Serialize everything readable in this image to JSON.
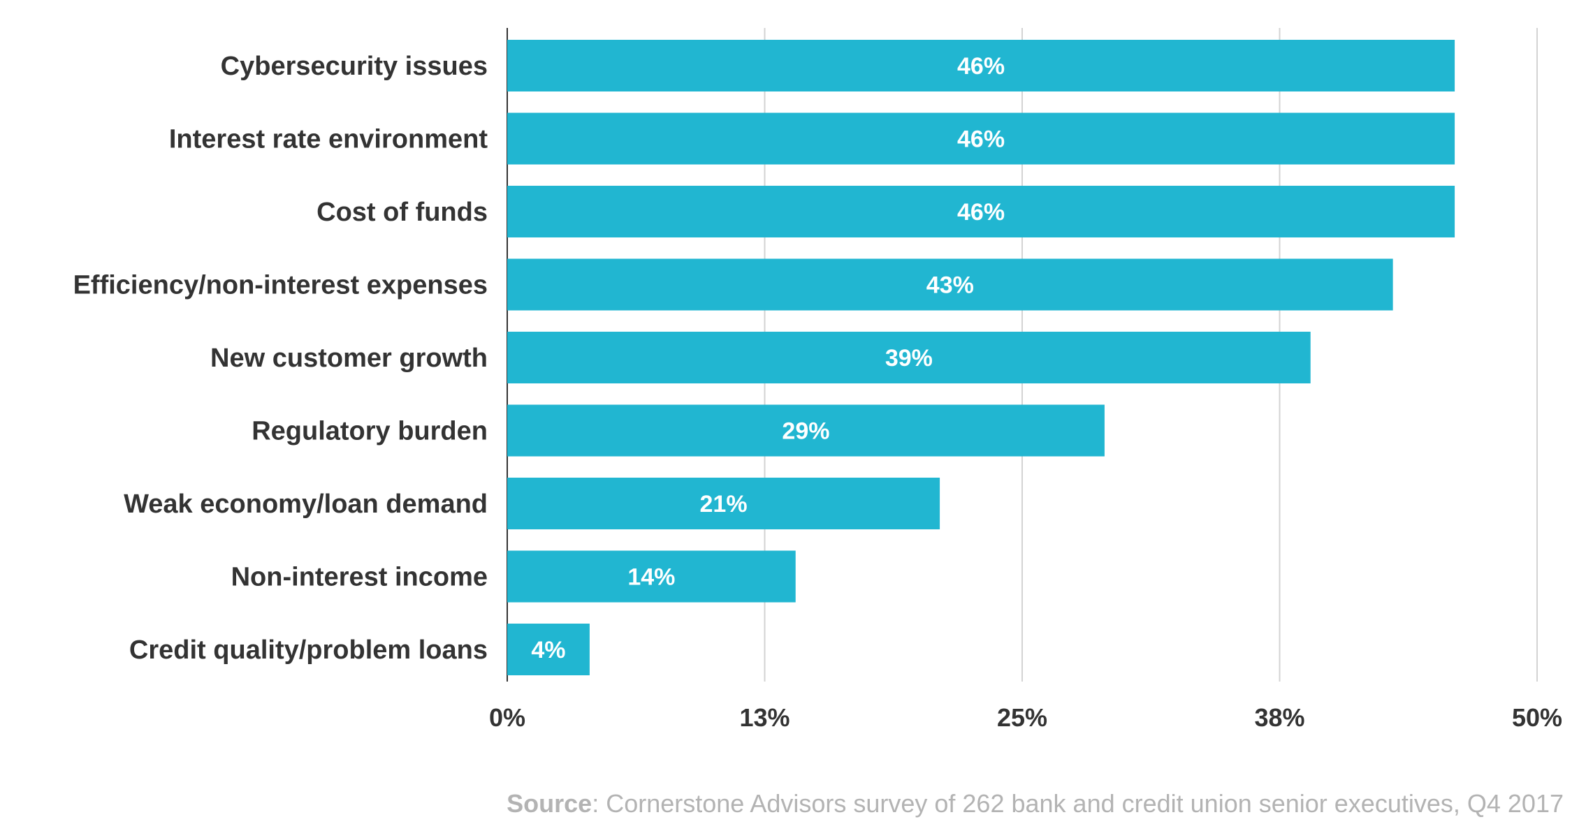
{
  "chart_data": {
    "type": "bar",
    "orientation": "horizontal",
    "categories": [
      "Cybersecurity issues",
      "Interest rate environment",
      "Cost of funds",
      "Efficiency/non-interest expenses",
      "New customer growth",
      "Regulatory burden",
      "Weak economy/loan demand",
      "Non-interest income",
      "Credit quality/problem loans"
    ],
    "values": [
      46,
      46,
      46,
      43,
      39,
      29,
      21,
      14,
      4
    ],
    "value_labels": [
      "46%",
      "46%",
      "46%",
      "43%",
      "39%",
      "29%",
      "21%",
      "14%",
      "4%"
    ],
    "xlim": [
      0,
      50
    ],
    "x_ticks": [
      0,
      12.5,
      25,
      37.5,
      50
    ],
    "x_tick_labels": [
      "0%",
      "13%",
      "25%",
      "38%",
      "50%"
    ],
    "grid": true,
    "bar_color": "#21b6d1"
  },
  "source": {
    "label": "Source",
    "text": ": Cornerstone Advisors survey of 262 bank and credit union senior executives, Q4 2017"
  }
}
